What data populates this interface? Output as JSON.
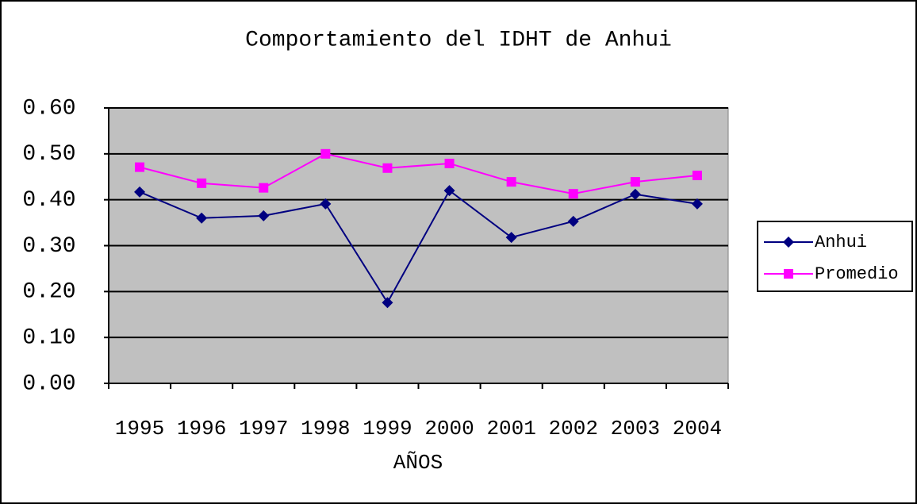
{
  "chart_data": {
    "type": "line",
    "title": "Comportamiento del IDHT de Anhui",
    "x_label": "AÑOS",
    "categories": [
      "1995",
      "1996",
      "1997",
      "1998",
      "1999",
      "2000",
      "2001",
      "2002",
      "2003",
      "2004"
    ],
    "series": [
      {
        "name": "Anhui",
        "color": "#000080",
        "marker": "diamond",
        "values": [
          0.417,
          0.36,
          0.365,
          0.391,
          0.176,
          0.42,
          0.318,
          0.353,
          0.412,
          0.391
        ]
      },
      {
        "name": "Promedio",
        "color": "#ff00ff",
        "marker": "square",
        "values": [
          0.471,
          0.436,
          0.426,
          0.5,
          0.469,
          0.479,
          0.439,
          0.413,
          0.439,
          0.453
        ]
      }
    ],
    "ylim": [
      0,
      0.6
    ],
    "yticks": [
      {
        "value": 0,
        "label": "0.00"
      },
      {
        "value": 0.1,
        "label": "0.10"
      },
      {
        "value": 0.2,
        "label": "0.20"
      },
      {
        "value": 0.3,
        "label": "0.30"
      },
      {
        "value": 0.4,
        "label": "0.40"
      },
      {
        "value": 0.5,
        "label": "0.50"
      },
      {
        "value": 0.6,
        "label": "0.60"
      }
    ],
    "grid": true,
    "plot_background": "#c0c0c0",
    "legend": "right"
  }
}
